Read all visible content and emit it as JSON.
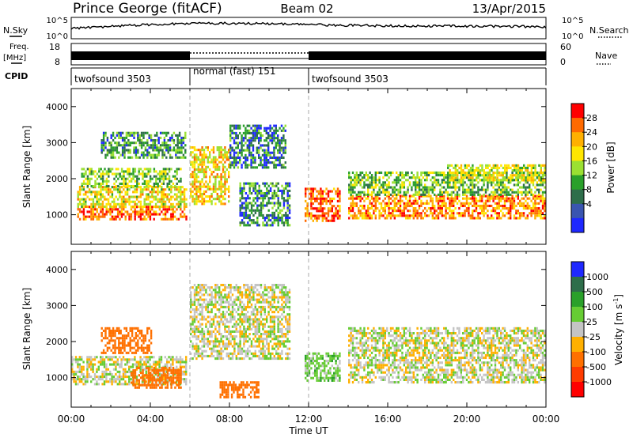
{
  "header": {
    "station": "Prince George (fitACF)",
    "beam": "Beam 02",
    "date": "13/Apr/2015"
  },
  "aux_panels": {
    "nsky": {
      "label": "N.Sky",
      "ticks": [
        "10^5",
        "10^0"
      ]
    },
    "nsearch": {
      "label": "N.Search",
      "ticks": [
        "10^5",
        "10^0"
      ]
    },
    "freq": {
      "label_top": "Freq.",
      "label_unit": "[MHz]",
      "ticks": [
        "18",
        "8"
      ]
    },
    "nave": {
      "label": "Nave",
      "ticks": [
        "60",
        "0"
      ]
    },
    "cpid": {
      "label": "CPID",
      "segments": [
        {
          "name": "twofsound 3503",
          "start_hour": 0,
          "end_hour": 6
        },
        {
          "name": "normal (fast) 151",
          "start_hour": 6,
          "end_hour": 12
        },
        {
          "name": "twofsound 3503",
          "start_hour": 12,
          "end_hour": 24
        }
      ]
    }
  },
  "chart_data": [
    {
      "type": "heatmap",
      "title": "Power",
      "ylabel": "Slant Range [km]",
      "xlabel": "",
      "xlim": [
        0,
        24
      ],
      "ylim": [
        180,
        4500
      ],
      "yticks": [
        1000,
        2000,
        3000,
        4000
      ],
      "colorbar": {
        "label": "Power [dB]",
        "ticks": [
          "28",
          "24",
          "20",
          "16",
          "12",
          "8",
          "4"
        ],
        "colors": [
          "#ff0000",
          "#ff6a00",
          "#ffb000",
          "#ffe600",
          "#9be032",
          "#2aa02a",
          "#2e6e4a",
          "#3a55b0",
          "#1e28ff"
        ]
      },
      "regions": [
        {
          "x": [
            0.3,
            5.8
          ],
          "y": [
            850,
            1250
          ],
          "value": 26
        },
        {
          "x": [
            0.3,
            5.8
          ],
          "y": [
            1250,
            1800
          ],
          "value": 18
        },
        {
          "x": [
            0.5,
            5.5
          ],
          "y": [
            1800,
            2300
          ],
          "value": 13
        },
        {
          "x": [
            1.5,
            5.8
          ],
          "y": [
            2600,
            3300
          ],
          "value": 9
        },
        {
          "x": [
            6.0,
            8.0
          ],
          "y": [
            1300,
            2900
          ],
          "value": 19
        },
        {
          "x": [
            8.0,
            10.8
          ],
          "y": [
            2300,
            3500
          ],
          "value": 7
        },
        {
          "x": [
            8.5,
            11.0
          ],
          "y": [
            700,
            1900
          ],
          "value": 8
        },
        {
          "x": [
            11.8,
            13.6
          ],
          "y": [
            850,
            1750
          ],
          "value": 26
        },
        {
          "x": [
            14.0,
            23.9
          ],
          "y": [
            900,
            1550
          ],
          "value": 24
        },
        {
          "x": [
            14.0,
            23.9
          ],
          "y": [
            1550,
            2200
          ],
          "value": 12
        },
        {
          "x": [
            19.0,
            23.9
          ],
          "y": [
            1950,
            2400
          ],
          "value": 17
        }
      ]
    },
    {
      "type": "heatmap",
      "title": "Velocity",
      "ylabel": "Slant Range [km]",
      "xlabel": "Time UT",
      "xlim": [
        0,
        24
      ],
      "ylim": [
        180,
        4500
      ],
      "xticks": [
        "00:00",
        "04:00",
        "08:00",
        "12:00",
        "16:00",
        "20:00",
        "00:00"
      ],
      "yticks": [
        1000,
        2000,
        3000,
        4000
      ],
      "colorbar": {
        "label": "Velocity [m s",
        "label_sup": "-1",
        "label_end": "]",
        "ticks": [
          "1000",
          "500",
          "100",
          "25",
          "-25",
          "-100",
          "-500",
          "-1000"
        ],
        "colors": [
          "#1e28ff",
          "#2e6e4a",
          "#2aa02a",
          "#66cc33",
          "#c4c4c4",
          "#ffb000",
          "#ff7000",
          "#ff3c00",
          "#ff0000"
        ]
      },
      "regions": [
        {
          "x": [
            0.0,
            5.8
          ],
          "y": [
            850,
            1600
          ],
          "value": 0
        },
        {
          "x": [
            1.5,
            4.0
          ],
          "y": [
            1700,
            2400
          ],
          "value": -350
        },
        {
          "x": [
            3.0,
            5.5
          ],
          "y": [
            750,
            1300
          ],
          "value": -350
        },
        {
          "x": [
            6.0,
            11.0
          ],
          "y": [
            1500,
            3600
          ],
          "value": 0
        },
        {
          "x": [
            7.5,
            9.5
          ],
          "y": [
            450,
            900
          ],
          "value": -200
        },
        {
          "x": [
            11.8,
            13.6
          ],
          "y": [
            950,
            1700
          ],
          "value": 60
        },
        {
          "x": [
            14.0,
            23.9
          ],
          "y": [
            900,
            2400
          ],
          "value": 0
        }
      ]
    }
  ]
}
